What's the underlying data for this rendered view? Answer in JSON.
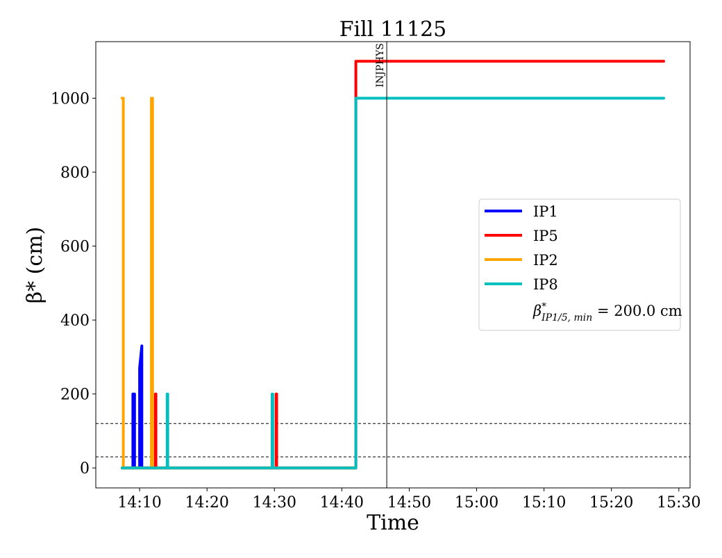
{
  "chart_data": {
    "type": "line",
    "title": "Fill 11125",
    "xlabel": "Time",
    "ylabel": "β* (cm)",
    "xlim": [
      "14:03:30",
      "15:31:40"
    ],
    "ylim": [
      -54,
      1153
    ],
    "xticks": [
      "14:10",
      "14:20",
      "14:30",
      "14:40",
      "14:50",
      "15:00",
      "15:10",
      "15:20",
      "15:30"
    ],
    "yticks": [
      0,
      200,
      400,
      600,
      800,
      1000
    ],
    "grid": false,
    "legend_position": "center-right",
    "series": [
      {
        "name": "IP1",
        "color": "#0000ff",
        "points": [
          [
            "14:07:24",
            0
          ],
          [
            "14:09:00",
            0
          ],
          [
            "14:09:00",
            200
          ],
          [
            "14:09:15",
            200
          ],
          [
            "14:09:15",
            0
          ],
          [
            "14:10:00",
            0
          ],
          [
            "14:10:00",
            270
          ],
          [
            "14:10:20",
            330
          ],
          [
            "14:10:20",
            0
          ],
          [
            "14:42:05",
            0
          ]
        ]
      },
      {
        "name": "IP5",
        "color": "#ff0000",
        "points": [
          [
            "14:07:24",
            0
          ],
          [
            "14:12:20",
            0
          ],
          [
            "14:12:20",
            200
          ],
          [
            "14:12:25",
            200
          ],
          [
            "14:12:25",
            0
          ],
          [
            "14:30:15",
            0
          ],
          [
            "14:30:15",
            200
          ],
          [
            "14:30:20",
            200
          ],
          [
            "14:30:20",
            0
          ],
          [
            "14:42:05",
            0
          ],
          [
            "14:42:05",
            1100
          ],
          [
            "15:27:45",
            1100
          ]
        ]
      },
      {
        "name": "IP2",
        "color": "#ffa500",
        "points": [
          [
            "14:07:24",
            1000
          ],
          [
            "14:07:35",
            1000
          ],
          [
            "14:07:35",
            0
          ],
          [
            "14:11:45",
            0
          ],
          [
            "14:11:45",
            1000
          ],
          [
            "14:11:55",
            1000
          ],
          [
            "14:11:55",
            0
          ],
          [
            "14:42:05",
            0
          ]
        ]
      },
      {
        "name": "IP8",
        "color": "#00bfbf",
        "points": [
          [
            "14:07:24",
            0
          ],
          [
            "14:14:05",
            0
          ],
          [
            "14:14:05",
            200
          ],
          [
            "14:14:10",
            200
          ],
          [
            "14:14:10",
            0
          ],
          [
            "14:29:40",
            0
          ],
          [
            "14:29:40",
            200
          ],
          [
            "14:29:45",
            200
          ],
          [
            "14:29:45",
            0
          ],
          [
            "14:42:05",
            0
          ],
          [
            "14:42:05",
            1000
          ],
          [
            "15:27:45",
            1000
          ]
        ]
      }
    ],
    "hlines": [
      120,
      30
    ],
    "vline": {
      "time": "14:46:40",
      "label": "INJPHYS"
    },
    "legend_extra": {
      "label_prefix": "β",
      "label_sup": "*",
      "label_sub": "IP1/5, min",
      "label_suffix": " = 200.0 cm"
    }
  }
}
